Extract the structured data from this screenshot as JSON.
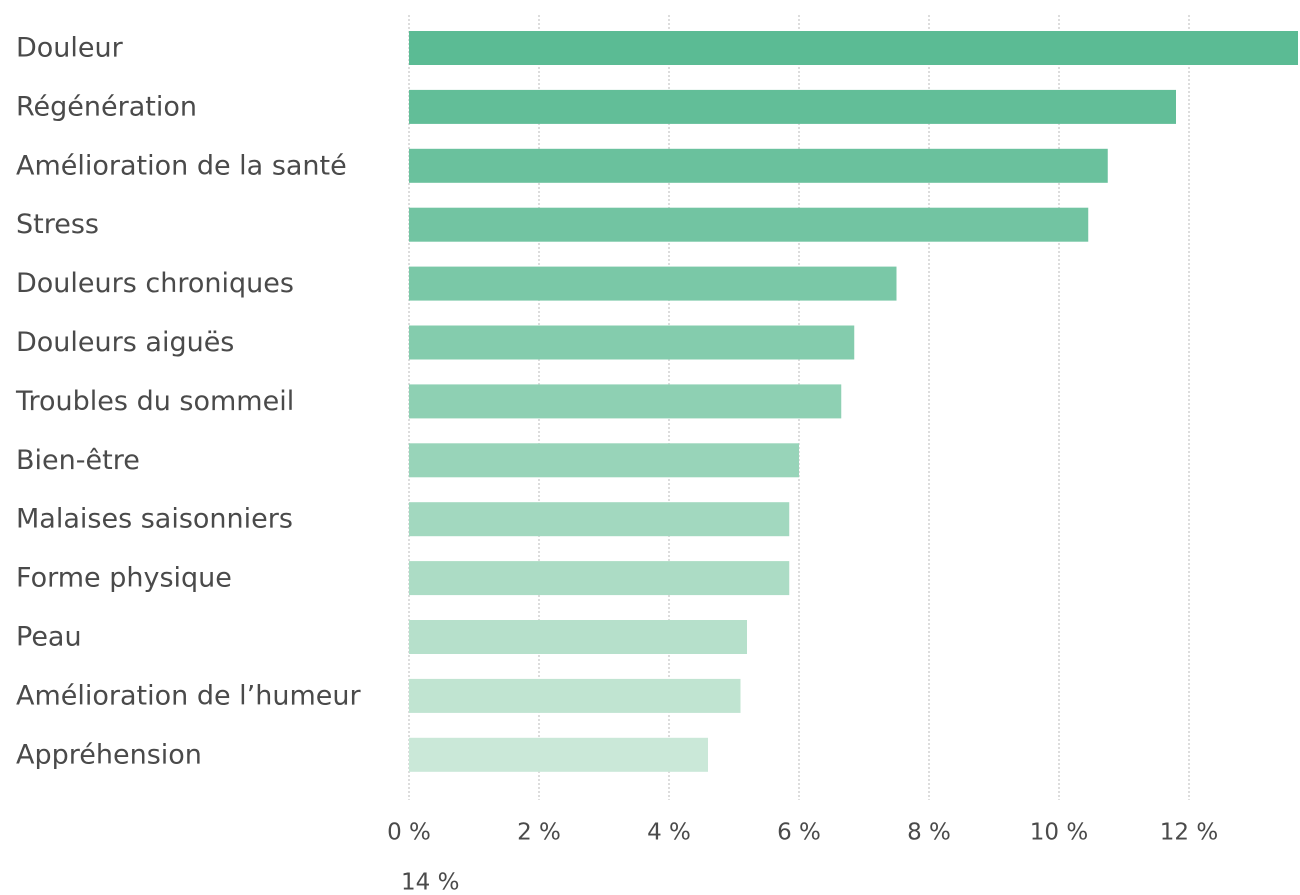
{
  "chart_data": {
    "type": "hbar",
    "categories": [
      "Douleur",
      "Régénération",
      "Amélioration de la santé",
      "Stress",
      "Douleurs chroniques",
      "Douleurs aiguës",
      "Troubles du sommeil",
      "Bien-être",
      "Malaises saisonniers",
      "Forme physique",
      "Peau",
      "Amélioration de l’humeur",
      "Appréhension"
    ],
    "values": [
      13.7,
      11.8,
      10.75,
      10.45,
      7.5,
      6.85,
      6.65,
      6.0,
      5.85,
      5.85,
      5.2,
      5.1,
      4.6
    ],
    "colors": [
      "#5bbb94",
      "#62be98",
      "#6ac19d",
      "#72c4a2",
      "#7ac8a7",
      "#84ccad",
      "#8ed0b3",
      "#98d4b9",
      "#a2d8bf",
      "#acdcc5",
      "#b6e0cb",
      "#c0e4d1",
      "#cae8d8"
    ],
    "xlim": [
      0,
      14
    ],
    "xticks": [
      {
        "value": 0,
        "label": "0 %"
      },
      {
        "value": 2,
        "label": "2 %"
      },
      {
        "value": 4,
        "label": "4 %"
      },
      {
        "value": 6,
        "label": "6 %"
      },
      {
        "value": 8,
        "label": "8 %"
      },
      {
        "value": 10,
        "label": "10 %"
      },
      {
        "value": 12,
        "label": "12 %"
      },
      {
        "value": 14,
        "label": "14 %"
      }
    ],
    "grid": true
  }
}
